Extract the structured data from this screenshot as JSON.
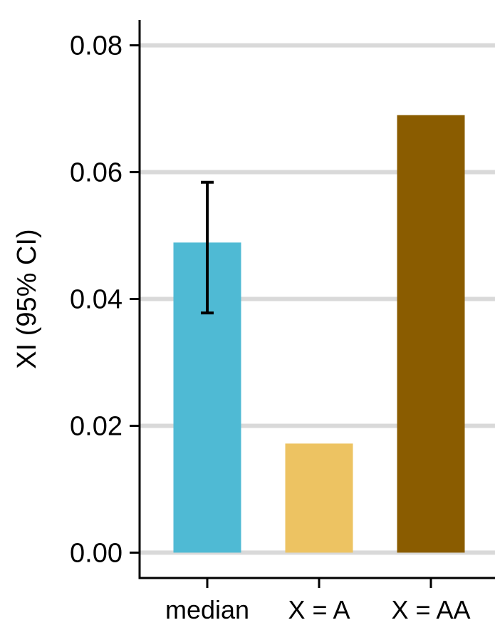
{
  "chart_data": {
    "type": "bar",
    "title": "",
    "xlabel": "",
    "ylabel": "XI (95% CI)",
    "categories": [
      "median",
      "X = A",
      "X = AA"
    ],
    "values": [
      0.0489,
      0.0172,
      0.069
    ],
    "error_bars": [
      {
        "category": "median",
        "low": 0.0378,
        "high": 0.0584
      },
      null,
      null
    ],
    "colors": [
      "#4FBAD4",
      "#EDC362",
      "#8A5C00"
    ],
    "ylim": [
      -0.004,
      0.084
    ],
    "yticks": [
      0.0,
      0.02,
      0.04,
      0.06,
      0.08
    ],
    "ytick_labels": [
      "0.00",
      "0.02",
      "0.04",
      "0.06",
      "0.08"
    ],
    "grid": "horizontal",
    "grid_color": "#D9D9D9",
    "legend": "none"
  }
}
